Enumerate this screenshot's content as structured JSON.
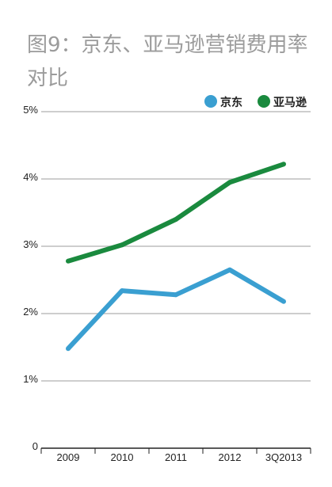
{
  "chart_data": {
    "type": "line",
    "title": "图9：京东、亚马逊营销费用率对比",
    "categories": [
      "2009",
      "2010",
      "2011",
      "2012",
      "3Q2013"
    ],
    "ylim": [
      0,
      5
    ],
    "yticks": [
      {
        "value": 0,
        "label": "0"
      },
      {
        "value": 1,
        "label": "1%"
      },
      {
        "value": 2,
        "label": "2%"
      },
      {
        "value": 3,
        "label": "3%"
      },
      {
        "value": 4,
        "label": "4%"
      },
      {
        "value": 5,
        "label": "5%"
      }
    ],
    "grid": true,
    "legend_position": "top-right",
    "series": [
      {
        "name": "京东",
        "color": "#3a9fd1",
        "values": [
          1.48,
          2.34,
          2.28,
          2.65,
          2.18
        ]
      },
      {
        "name": "亚马逊",
        "color": "#1a8a3e",
        "values": [
          2.78,
          3.02,
          3.4,
          3.95,
          4.22
        ]
      }
    ]
  }
}
